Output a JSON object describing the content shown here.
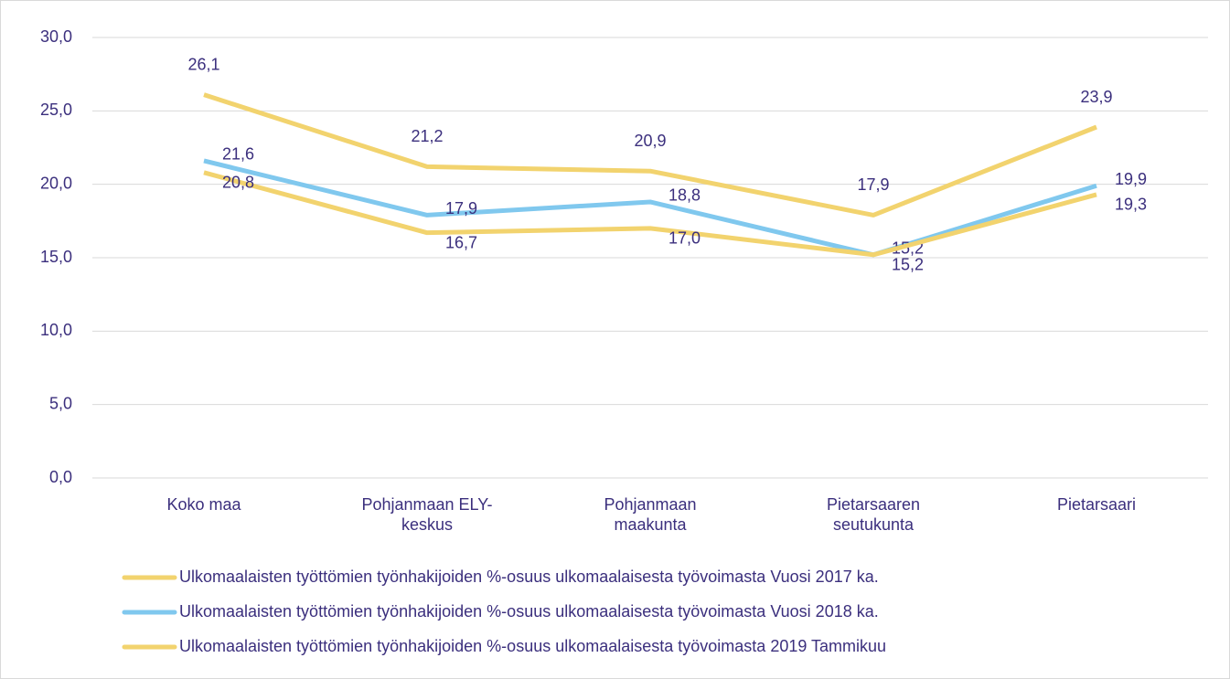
{
  "chart_data": {
    "type": "line",
    "categories": [
      "Koko maa",
      "Pohjanmaan ELY-keskus",
      "Pohjanmaan maakunta",
      "Pietarsaaren seutukunta",
      "Pietarsaari"
    ],
    "series": [
      {
        "name": "Ulkomaalaisten työttömien työnhakijoiden %-osuus ulkomaalaisesta työvoimasta Vuosi 2017 ka.",
        "color": "#f2d36e",
        "values": [
          26.1,
          21.2,
          20.9,
          17.9,
          23.9
        ],
        "value_labels": [
          "26,1",
          "21,2",
          "20,9",
          "17,9",
          "23,9"
        ]
      },
      {
        "name": "Ulkomaalaisten työttömien työnhakijoiden %-osuus ulkomaalaisesta työvoimasta Vuosi 2018 ka.",
        "color": "#80c8ee",
        "values": [
          21.6,
          17.9,
          18.8,
          15.2,
          19.9
        ],
        "value_labels": [
          "21,6",
          "17,9",
          "18,8",
          "15,2",
          "19,9"
        ]
      },
      {
        "name": "Ulkomaalaisten työttömien työnhakijoiden %-osuus ulkomaalaisesta työvoimasta 2019 Tammikuu",
        "color": "#f2d36e",
        "values": [
          20.8,
          16.7,
          17.0,
          15.2,
          19.3
        ],
        "value_labels": [
          "20,8",
          "16,7",
          "17,0",
          "15,2",
          "19,3"
        ]
      }
    ],
    "ylim": [
      0,
      30
    ],
    "yticks": [
      {
        "value": 0,
        "label": "0,0"
      },
      {
        "value": 5,
        "label": "5,0"
      },
      {
        "value": 10,
        "label": "10,0"
      },
      {
        "value": 15,
        "label": "15,0"
      },
      {
        "value": 20,
        "label": "20,0"
      },
      {
        "value": 25,
        "label": "25,0"
      },
      {
        "value": 30,
        "label": "30,0"
      }
    ],
    "grid": true
  }
}
